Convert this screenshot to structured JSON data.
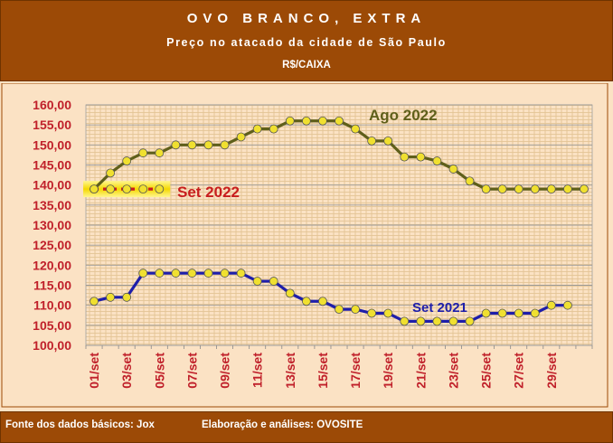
{
  "header": {
    "title": "OVO BRANCO, EXTRA",
    "subtitle": "Preço no atacado da cidade de São Paulo",
    "unit": "R$/CAIXA"
  },
  "footer": {
    "source": "Fonte dos dados básicos: Jox",
    "analysis": "Elaboração e análises: OVOSITE"
  },
  "colors": {
    "header_bg": "#9c4a06",
    "page_bg": "#fbe2c4",
    "ago2022": "#5f5f1a",
    "set2021": "#1e1eaa",
    "set2022": "#c81e1e",
    "marker_fill": "#f0e030",
    "axis_text": "#c0202a"
  },
  "chart_data": {
    "type": "line",
    "ylim": [
      100,
      160
    ],
    "y_ticks": [
      "100,00",
      "105,00",
      "110,00",
      "115,00",
      "120,00",
      "125,00",
      "130,00",
      "135,00",
      "140,00",
      "145,00",
      "150,00",
      "155,00",
      "160,00"
    ],
    "x_ticks": [
      "01/set",
      "03/set",
      "05/set",
      "07/set",
      "09/set",
      "11/set",
      "13/set",
      "15/set",
      "17/set",
      "19/set",
      "21/set",
      "23/set",
      "25/set",
      "27/set",
      "29/set"
    ],
    "grid": true,
    "series": [
      {
        "name": "Ago 2022",
        "x": [
          1,
          2,
          3,
          4,
          5,
          6,
          7,
          8,
          9,
          10,
          11,
          12,
          13,
          14,
          15,
          16,
          17,
          18,
          19,
          20,
          21,
          22,
          23,
          24,
          25,
          26,
          27,
          28,
          29,
          30,
          31
        ],
        "values": [
          139,
          143,
          146,
          148,
          148,
          150,
          150,
          150,
          150,
          152,
          154,
          154,
          156,
          156,
          156,
          156,
          154,
          151,
          151,
          147,
          147,
          146,
          144,
          141,
          139,
          139,
          139,
          139,
          139,
          139,
          139
        ]
      },
      {
        "name": "Set 2022",
        "x": [
          1,
          2,
          3,
          4,
          5
        ],
        "values": [
          139,
          139,
          139,
          139,
          139
        ]
      },
      {
        "name": "Set 2021",
        "x": [
          1,
          2,
          3,
          4,
          5,
          6,
          7,
          8,
          9,
          10,
          11,
          12,
          13,
          14,
          15,
          16,
          17,
          18,
          19,
          20,
          21,
          22,
          23,
          24,
          25,
          26,
          27,
          28,
          29,
          30
        ],
        "values": [
          111,
          112,
          112,
          118,
          118,
          118,
          118,
          118,
          118,
          118,
          116,
          116,
          113,
          111,
          111,
          109,
          109,
          108,
          108,
          106,
          106,
          106,
          106,
          106,
          108,
          108,
          108,
          108,
          110,
          110
        ]
      }
    ]
  }
}
